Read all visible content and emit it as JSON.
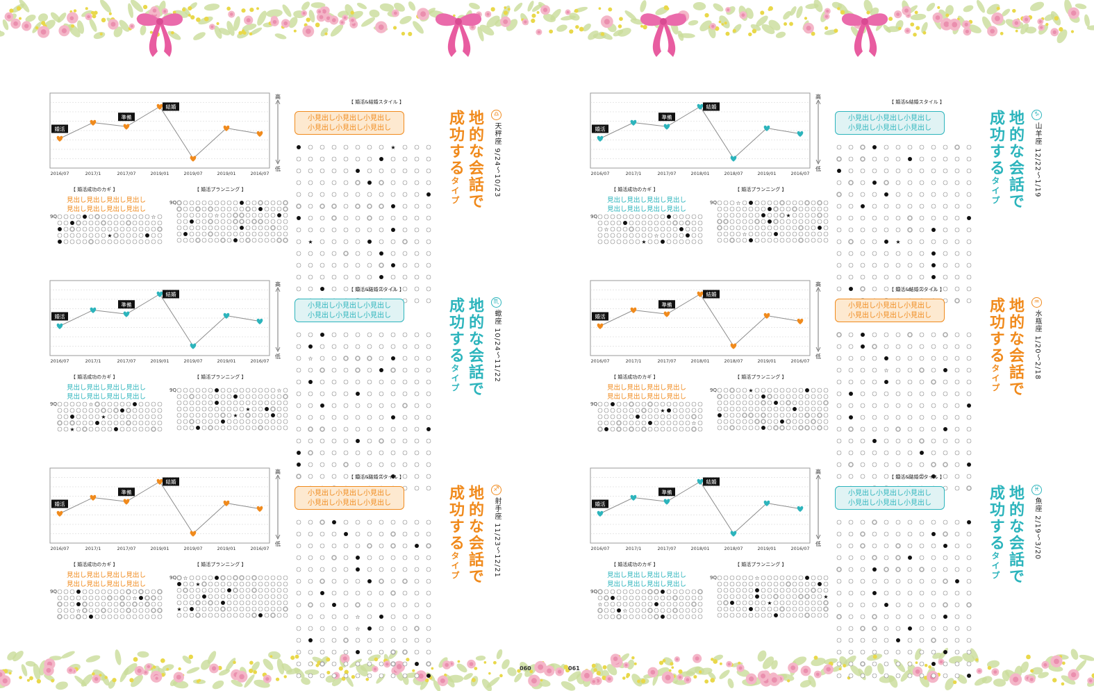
{
  "colors": {
    "orange": "#f08a1c",
    "teal": "#2cb4bc",
    "orange_bg": "#fde9d0",
    "teal_bg": "#e0f3f4",
    "garland_pink": "#ea6bab",
    "garland_yellow": "#e9d84a",
    "garland_green": "#c9dc9a"
  },
  "common": {
    "title_line1": "地的な会話で",
    "title_line2_main": "成功する",
    "title_line2_small": "タイプ",
    "style_label": "【 婚活&結婚スタイル 】",
    "key_label": "【 婚活成功のカギ 】",
    "planning_label": "【 婚活プランニング 】",
    "pill_line": "小見出し小見出し小見出し",
    "key_line": "見出し見出し見出し見出し",
    "grid_prefix": "9Q",
    "axis_high": "高",
    "axis_low": "低",
    "marker_start": "婚活",
    "marker_prep": "準備",
    "marker_wed": "結婚"
  },
  "pages": {
    "left": "060",
    "right": "061"
  },
  "panels": [
    {
      "sign": "天秤座",
      "dates": "9/24〜10/23",
      "icon": "♎",
      "theme": "orange",
      "x_ticks": [
        "2016/07",
        "2017/1",
        "2017/07",
        "2019/01",
        "2019/07",
        "2019/01",
        "2016/07"
      ]
    },
    {
      "sign": "蠍座",
      "dates": "10/24〜11/22",
      "icon": "♏",
      "theme": "teal",
      "x_ticks": [
        "2016/07",
        "2017/1",
        "2017/07",
        "2019/01",
        "2019/07",
        "2019/01",
        "2016/07"
      ]
    },
    {
      "sign": "射手座",
      "dates": "11/23〜12/21",
      "icon": "♐",
      "theme": "orange",
      "x_ticks": [
        "2016/07",
        "2017/1",
        "2017/07",
        "2019/01",
        "2019/07",
        "2019/01",
        "2016/07"
      ]
    },
    {
      "sign": "山羊座",
      "dates": "12/22〜1/19",
      "icon": "♑",
      "theme": "teal",
      "x_ticks": [
        "2016/07",
        "2017/1",
        "2017/07",
        "2018/01",
        "2018/07",
        "2019/01",
        "2016/07"
      ]
    },
    {
      "sign": "水瓶座",
      "dates": "1/20〜2/18",
      "icon": "♒",
      "theme": "orange",
      "x_ticks": [
        "2016/07",
        "2017/1",
        "2017/07",
        "2018/01",
        "2018/07",
        "2019/01",
        "2016/07"
      ]
    },
    {
      "sign": "魚座",
      "dates": "2/19〜3/20",
      "icon": "♓",
      "theme": "teal",
      "x_ticks": [
        "2016/07",
        "2017/1",
        "2017/07",
        "2018/01",
        "2018/07",
        "2019/01",
        "2016/07"
      ]
    }
  ],
  "chart_data": [
    {
      "type": "line",
      "sign": "天秤座",
      "y_label_top": "高",
      "y_label_bottom": "低",
      "categories": [
        "2016/07",
        "2017/1",
        "2017/07",
        "2019/01",
        "2019/07",
        "2019/01",
        "2016/07"
      ],
      "values": [
        3.0,
        5.0,
        4.5,
        7.0,
        0.5,
        4.3,
        3.6
      ],
      "ylim": [
        0,
        8
      ],
      "markers": {
        "0": "婚活",
        "2": "準備",
        "3": "結婚"
      }
    },
    {
      "type": "line",
      "sign": "蠍座",
      "y_label_top": "高",
      "y_label_bottom": "低",
      "categories": [
        "2016/07",
        "2017/1",
        "2017/07",
        "2019/01",
        "2019/07",
        "2019/01",
        "2016/07"
      ],
      "values": [
        3.0,
        5.0,
        4.5,
        7.0,
        0.5,
        4.3,
        3.6
      ],
      "ylim": [
        0,
        8
      ],
      "markers": {
        "0": "婚活",
        "2": "準備",
        "3": "結婚"
      }
    },
    {
      "type": "line",
      "sign": "射手座",
      "y_label_top": "高",
      "y_label_bottom": "低",
      "categories": [
        "2016/07",
        "2017/1",
        "2017/07",
        "2019/01",
        "2019/07",
        "2019/01",
        "2016/07"
      ],
      "values": [
        3.0,
        5.0,
        4.5,
        7.0,
        0.5,
        4.3,
        3.6
      ],
      "ylim": [
        0,
        8
      ],
      "markers": {
        "0": "婚活",
        "2": "準備",
        "3": "結婚"
      }
    },
    {
      "type": "line",
      "sign": "山羊座",
      "y_label_top": "高",
      "y_label_bottom": "低",
      "categories": [
        "2016/07",
        "2017/1",
        "2017/07",
        "2018/01",
        "2018/07",
        "2019/01",
        "2016/07"
      ],
      "values": [
        3.0,
        5.0,
        4.5,
        7.0,
        0.5,
        4.3,
        3.6
      ],
      "ylim": [
        0,
        8
      ],
      "markers": {
        "0": "婚活",
        "2": "準備",
        "3": "結婚"
      }
    },
    {
      "type": "line",
      "sign": "水瓶座",
      "y_label_top": "高",
      "y_label_bottom": "低",
      "categories": [
        "2016/07",
        "2017/1",
        "2017/07",
        "2018/01",
        "2018/07",
        "2019/01",
        "2016/07"
      ],
      "values": [
        3.0,
        5.0,
        4.5,
        7.0,
        0.5,
        4.3,
        3.6
      ],
      "ylim": [
        0,
        8
      ],
      "markers": {
        "0": "婚活",
        "2": "準備",
        "3": "結婚"
      }
    },
    {
      "type": "line",
      "sign": "魚座",
      "y_label_top": "高",
      "y_label_bottom": "低",
      "categories": [
        "2016/07",
        "2017/1",
        "2017/07",
        "2018/01",
        "2018/07",
        "2019/01",
        "2016/07"
      ],
      "values": [
        3.0,
        5.0,
        4.5,
        7.0,
        0.5,
        4.3,
        3.6
      ],
      "ylim": [
        0,
        8
      ],
      "markers": {
        "0": "婚活",
        "2": "準備",
        "3": "結婚"
      }
    }
  ]
}
